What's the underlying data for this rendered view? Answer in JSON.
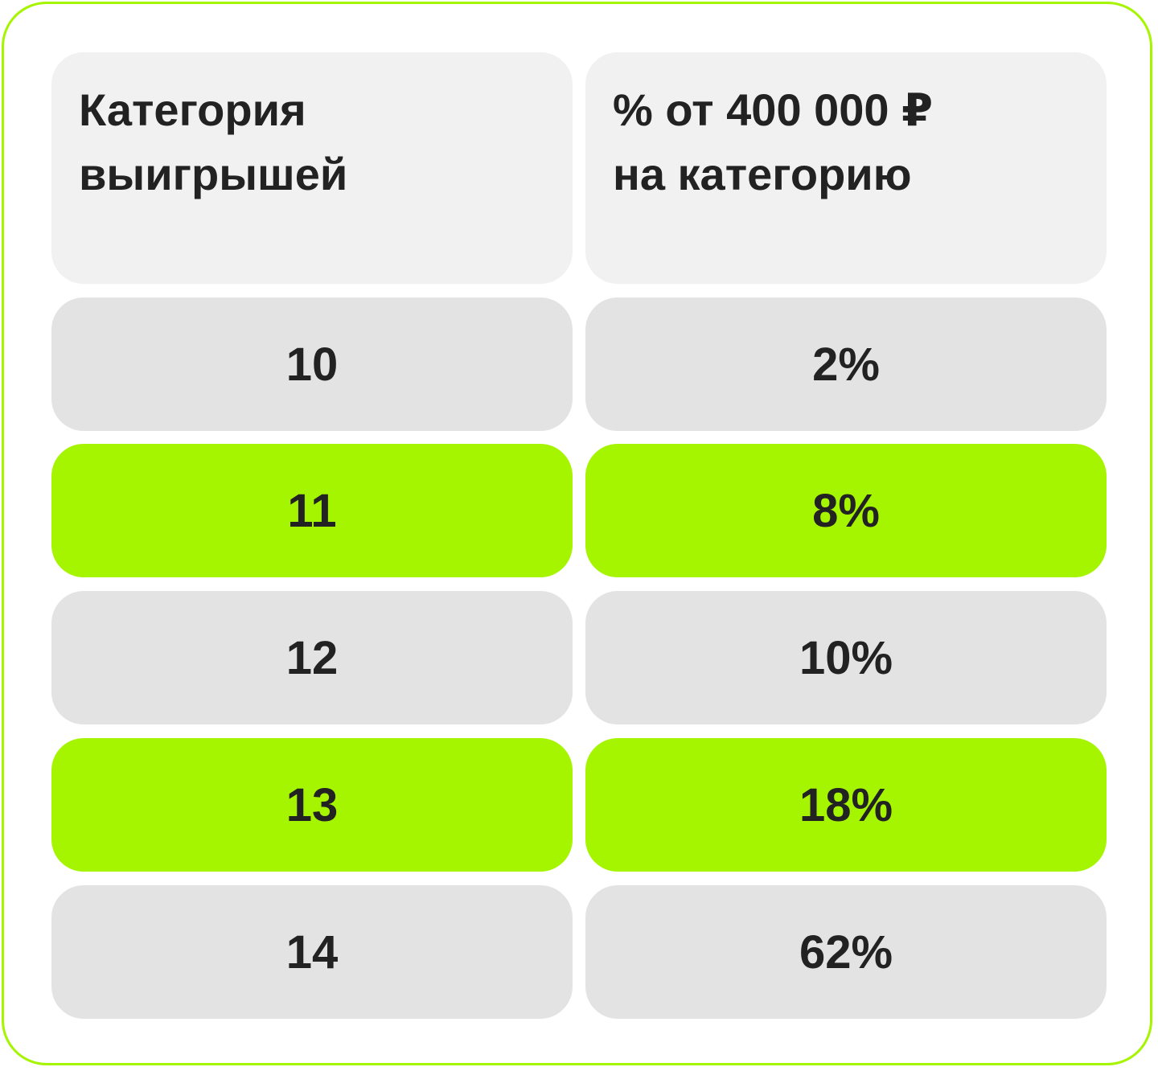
{
  "header": {
    "col1": [
      "Категория",
      "выигрышей"
    ],
    "col2": [
      "% от 400 000 ₽",
      "на категорию"
    ]
  },
  "rows": [
    {
      "category": "10",
      "percent": "2%",
      "highlight": false
    },
    {
      "category": "11",
      "percent": "8%",
      "highlight": true
    },
    {
      "category": "12",
      "percent": "10%",
      "highlight": false
    },
    {
      "category": "13",
      "percent": "18%",
      "highlight": true
    },
    {
      "category": "14",
      "percent": "62%",
      "highlight": false
    }
  ],
  "colors": {
    "border": "#a6f500",
    "highlight": "#a6f500",
    "header_bg": "#f1f1f1",
    "row_bg": "#e3e3e3",
    "text": "#222222"
  }
}
